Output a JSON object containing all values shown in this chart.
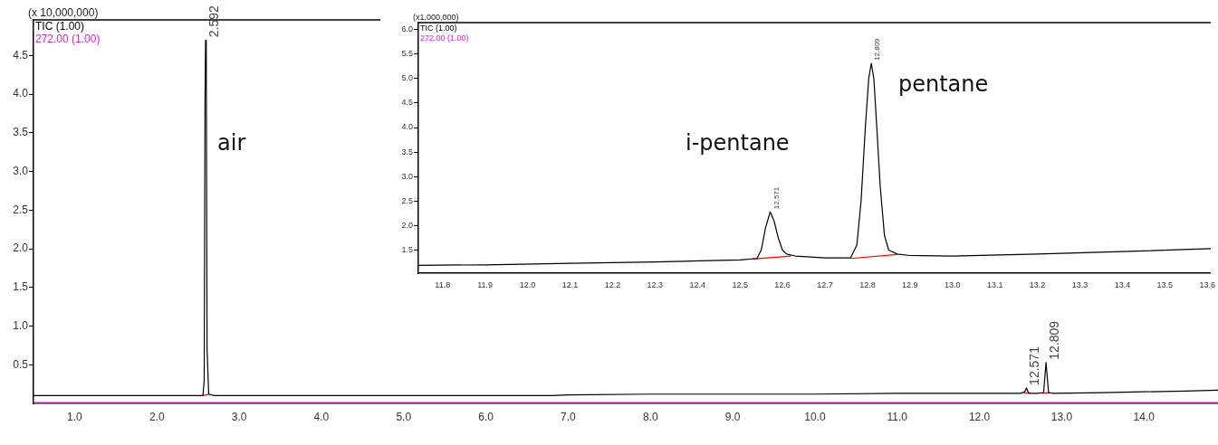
{
  "chart_data": [
    {
      "type": "line",
      "ylabel": "(x 10,000,000)",
      "legend": "top left",
      "marker": "none",
      "xlim": [
        0.5,
        14.9
      ],
      "ylim": [
        0,
        4.96
      ],
      "xticks": [
        {
          "value": 1,
          "label": "1.0"
        },
        {
          "value": 2,
          "label": "2.0"
        },
        {
          "value": 3,
          "label": "3.0"
        },
        {
          "value": 4,
          "label": "4.0"
        },
        {
          "value": 5,
          "label": "5.0"
        },
        {
          "value": 6,
          "label": "6.0"
        },
        {
          "value": 7,
          "label": "7.0"
        },
        {
          "value": 8,
          "label": "8.0"
        },
        {
          "value": 9,
          "label": "9.0"
        },
        {
          "value": 10,
          "label": "10.0"
        },
        {
          "value": 11,
          "label": "11.0"
        },
        {
          "value": 12,
          "label": "12.0"
        },
        {
          "value": 13,
          "label": "13.0"
        },
        {
          "value": 14,
          "label": "14.0"
        }
      ],
      "yticks": [
        0.5,
        {
          "value": 1,
          "label": "1.0"
        },
        1.5,
        {
          "value": 2,
          "label": "2.0"
        },
        2.5,
        {
          "value": 3,
          "label": "3.0"
        },
        3.5,
        {
          "value": 4,
          "label": "4.0"
        },
        4.5
      ],
      "series": [
        {
          "name": "TIC (1.00)",
          "color": "#000000",
          "x": [
            0.5,
            2.5,
            2.56,
            2.575,
            2.585,
            2.592,
            2.6,
            2.61,
            2.63,
            2.7,
            5,
            6.8,
            7,
            8,
            9,
            10,
            11,
            12,
            12.5,
            12.55,
            12.571,
            12.6,
            12.7,
            12.78,
            12.809,
            12.84,
            12.9,
            13.5,
            14,
            14.5,
            14.9
          ],
          "values": [
            0.1,
            0.1,
            0.1,
            0.3,
            3.9,
            4.7,
            4.55,
            0.7,
            0.12,
            0.1,
            0.1,
            0.1,
            0.11,
            0.12,
            0.12,
            0.12,
            0.13,
            0.13,
            0.13,
            0.15,
            0.2,
            0.13,
            0.13,
            0.14,
            0.53,
            0.14,
            0.13,
            0.14,
            0.15,
            0.16,
            0.17
          ]
        },
        {
          "name": "272.00 (1.00)",
          "color": "#e020e0",
          "x": [
            0.5,
            14.9
          ],
          "values": [
            0.01,
            0.01
          ]
        },
        {
          "color": "#ff0000",
          "x": [
            2.56,
            2.64,
            8,
            12.54,
            12.62,
            12.7,
            12.76,
            12.86
          ],
          "values": [
            0.1,
            0.12,
            null,
            0.13,
            0.14,
            null,
            0.13,
            0.14
          ]
        }
      ],
      "annotations": [
        "air",
        {
          "text": "2.592",
          "x": 2.592,
          "y": 4.7
        },
        {
          "text": "12.571",
          "x": 12.571,
          "y": 0.2
        },
        {
          "text": "12.809",
          "x": 12.809,
          "y": 0.53
        }
      ]
    },
    {
      "type": "line",
      "ylabel": "(x1,000,000)",
      "legend": "top left",
      "marker": "none",
      "xlim": [
        11.743,
        13.608
      ],
      "ylim": [
        1.03,
        6.14
      ],
      "xticks": [
        11.8,
        11.9,
        {
          "value": 12,
          "label": "12.0"
        },
        12.1,
        12.2,
        12.3,
        12.4,
        12.5,
        12.6,
        12.7,
        12.8,
        12.9,
        {
          "value": 13,
          "label": "13.0"
        },
        13.1,
        13.2,
        13.3,
        13.4,
        13.5,
        13.6
      ],
      "yticks": [
        1.5,
        {
          "value": 2,
          "label": "2.0"
        },
        2.5,
        {
          "value": 3,
          "label": "3.0"
        },
        3.5,
        {
          "value": 4,
          "label": "4.0"
        },
        4.5,
        {
          "value": 5,
          "label": "5.0"
        },
        5.5,
        {
          "value": 6,
          "label": "6.0"
        }
      ],
      "series": [
        {
          "name": "TIC (1.00)",
          "color": "#000000",
          "x": [
            11.743,
            11.9,
            12.1,
            12.3,
            12.5,
            12.54,
            12.55,
            12.56,
            12.571,
            12.58,
            12.59,
            12.6,
            12.61,
            12.63,
            12.7,
            12.76,
            12.775,
            12.785,
            12.795,
            12.803,
            12.809,
            12.815,
            12.822,
            12.83,
            12.84,
            12.85,
            12.87,
            12.9,
            13.0,
            13.2,
            13.4,
            13.608
          ],
          "values": [
            1.19,
            1.2,
            1.23,
            1.26,
            1.3,
            1.33,
            1.5,
            1.95,
            2.28,
            2.1,
            1.75,
            1.5,
            1.42,
            1.38,
            1.34,
            1.34,
            1.6,
            2.5,
            4.0,
            5.0,
            5.31,
            5.0,
            4.0,
            2.8,
            1.8,
            1.5,
            1.42,
            1.39,
            1.38,
            1.42,
            1.47,
            1.53
          ]
        },
        {
          "color": "#ff0000",
          "x": [
            12.53,
            12.62,
            12.7,
            12.76,
            12.87
          ],
          "values": [
            1.32,
            1.38,
            null,
            1.33,
            1.41
          ]
        }
      ],
      "annotations": [
        "272.00 (1.00)",
        "i-pentane",
        "pentane",
        {
          "text": "12.571",
          "x": 12.571,
          "y": 2.28
        },
        {
          "text": "12.809",
          "x": 12.809,
          "y": 5.31
        }
      ]
    }
  ]
}
